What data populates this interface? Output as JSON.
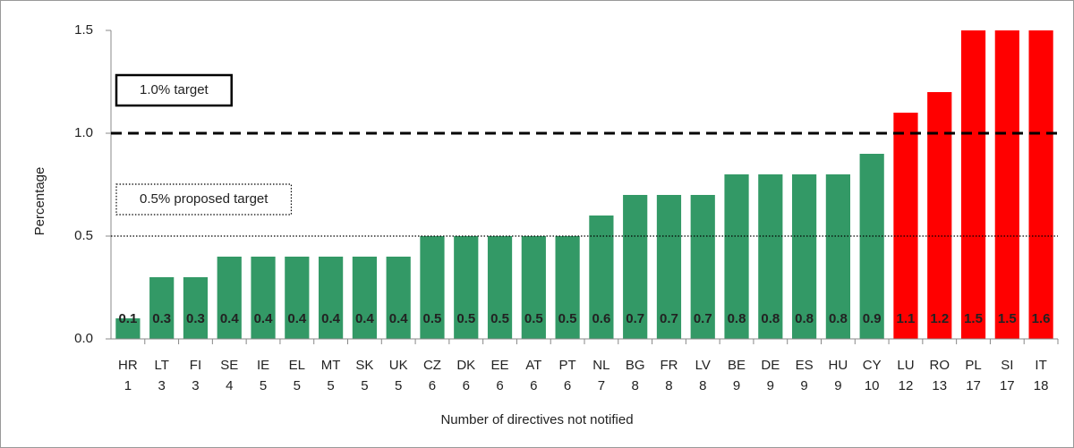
{
  "chart_data": {
    "type": "bar",
    "y_label": "Percentage",
    "x_label": "Number of directives not notified",
    "categories": [
      "HR",
      "LT",
      "FI",
      "SE",
      "IE",
      "EL",
      "MT",
      "SK",
      "UK",
      "CZ",
      "DK",
      "EE",
      "AT",
      "PT",
      "NL",
      "BG",
      "FR",
      "LV",
      "BE",
      "DE",
      "ES",
      "HU",
      "CY",
      "LU",
      "RO",
      "PL",
      "SI",
      "IT"
    ],
    "category_counts": [
      1,
      3,
      3,
      4,
      5,
      5,
      5,
      5,
      5,
      6,
      6,
      6,
      6,
      6,
      7,
      8,
      8,
      8,
      9,
      9,
      9,
      9,
      10,
      12,
      13,
      17,
      17,
      18
    ],
    "values": [
      0.1,
      0.3,
      0.3,
      0.4,
      0.4,
      0.4,
      0.4,
      0.4,
      0.4,
      0.5,
      0.5,
      0.5,
      0.5,
      0.5,
      0.6,
      0.7,
      0.7,
      0.7,
      0.8,
      0.8,
      0.8,
      0.8,
      0.9,
      1.1,
      1.2,
      1.5,
      1.5,
      1.6
    ],
    "colors": [
      "#339966",
      "#339966",
      "#339966",
      "#339966",
      "#339966",
      "#339966",
      "#339966",
      "#339966",
      "#339966",
      "#339966",
      "#339966",
      "#339966",
      "#339966",
      "#339966",
      "#339966",
      "#339966",
      "#339966",
      "#339966",
      "#339966",
      "#339966",
      "#339966",
      "#339966",
      "#339966",
      "#ff0000",
      "#ff0000",
      "#ff0000",
      "#ff0000",
      "#ff0000"
    ],
    "ylim": [
      0,
      1.5
    ],
    "yticks": [
      {
        "value": 0,
        "label": "0.0"
      },
      {
        "value": 0.5,
        "label": "0.5"
      },
      {
        "value": 1,
        "label": "1.0"
      },
      {
        "value": 1.5,
        "label": "1.5"
      }
    ],
    "reference_lines": [
      {
        "label": "1.0% target",
        "value": 1,
        "style": "dashed"
      },
      {
        "label": "0.5% proposed target",
        "value": 0.5,
        "style": "dotted"
      }
    ]
  }
}
